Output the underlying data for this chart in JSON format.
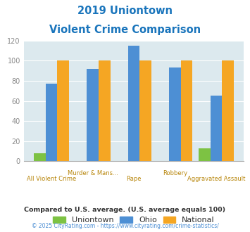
{
  "title_line1": "2019 Uniontown",
  "title_line2": "Violent Crime Comparison",
  "uniontown": [
    8,
    0,
    0,
    0,
    13
  ],
  "ohio": [
    77,
    92,
    115,
    93,
    65
  ],
  "national": [
    100,
    100,
    100,
    100,
    100
  ],
  "color_uniontown": "#7dc243",
  "color_ohio": "#4d8fd4",
  "color_national": "#f5a623",
  "color_title": "#1a75bc",
  "color_bg_plot": "#dce9ee",
  "color_bg_fig": "#ffffff",
  "ylim": [
    0,
    120
  ],
  "yticks": [
    0,
    20,
    40,
    60,
    80,
    100,
    120
  ],
  "top_labels": [
    "",
    "Murder & Mans...",
    "",
    "Robbery",
    ""
  ],
  "bot_labels": [
    "All Violent Crime",
    "",
    "Rape",
    "",
    "Aggravated Assault"
  ],
  "footnote1": "Compared to U.S. average. (U.S. average equals 100)",
  "footnote2": "© 2025 CityRating.com - https://www.cityrating.com/crime-statistics/",
  "footnote1_color": "#333333",
  "footnote2_color": "#4d8fd4",
  "label_color": "#b8860b",
  "legend_labels": [
    "Uniontown",
    "Ohio",
    "National"
  ],
  "legend_text_color": "#333333"
}
